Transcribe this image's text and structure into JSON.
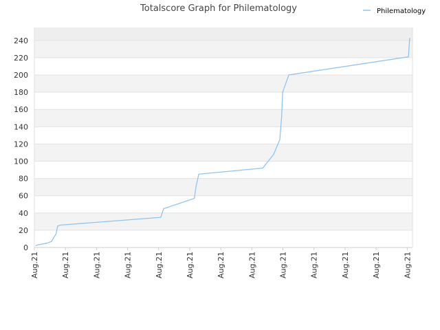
{
  "chart_data": {
    "type": "line",
    "title": "Totalscore Graph for Philematology",
    "x": [
      0.04,
      0.1,
      0.4,
      0.55,
      0.7,
      0.75,
      0.84,
      4.07,
      4.16,
      5.15,
      5.2,
      5.29,
      7.35,
      7.7,
      7.9,
      7.96,
      7.99,
      8.19,
      12.04,
      12.08
    ],
    "series": [
      {
        "name": "Philematology",
        "color": "#90c4f0",
        "values": [
          2,
          3,
          5,
          7,
          16,
          25,
          26,
          35,
          45,
          57,
          70,
          85,
          92,
          108,
          125,
          152,
          180,
          200,
          221,
          243
        ]
      }
    ],
    "xlim": [
      0,
      12.17
    ],
    "xticks": [
      {
        "value": 0,
        "label": "Aug.21"
      },
      {
        "value": 1,
        "label": "Aug.21"
      },
      {
        "value": 2,
        "label": "Aug.21"
      },
      {
        "value": 3,
        "label": "Aug.21"
      },
      {
        "value": 4,
        "label": "Aug.21"
      },
      {
        "value": 5,
        "label": "Aug.21"
      },
      {
        "value": 6,
        "label": "Aug.21"
      },
      {
        "value": 7,
        "label": "Aug.21"
      },
      {
        "value": 8,
        "label": "Aug.21"
      },
      {
        "value": 9,
        "label": "Aug.21"
      },
      {
        "value": 10,
        "label": "Aug.21"
      },
      {
        "value": 11,
        "label": "Aug.21"
      },
      {
        "value": 12,
        "label": "Aug.21"
      }
    ],
    "ylim": [
      0,
      255
    ],
    "yticks": [
      0,
      20,
      40,
      60,
      80,
      100,
      120,
      140,
      160,
      180,
      200,
      220,
      240
    ],
    "grid": true,
    "legend": "top-right"
  }
}
